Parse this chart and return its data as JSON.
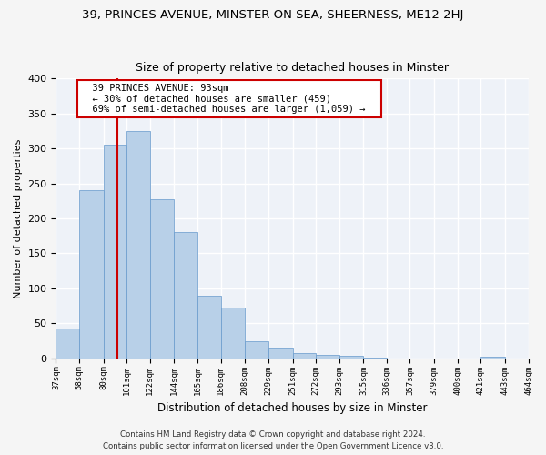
{
  "title1": "39, PRINCES AVENUE, MINSTER ON SEA, SHEERNESS, ME12 2HJ",
  "title2": "Size of property relative to detached houses in Minster",
  "xlabel": "Distribution of detached houses by size in Minster",
  "ylabel": "Number of detached properties",
  "bins": [
    "37sqm",
    "58sqm",
    "80sqm",
    "101sqm",
    "122sqm",
    "144sqm",
    "165sqm",
    "186sqm",
    "208sqm",
    "229sqm",
    "251sqm",
    "272sqm",
    "293sqm",
    "315sqm",
    "336sqm",
    "357sqm",
    "379sqm",
    "400sqm",
    "421sqm",
    "443sqm",
    "464sqm"
  ],
  "values": [
    42,
    240,
    305,
    325,
    228,
    180,
    90,
    72,
    25,
    15,
    8,
    5,
    3,
    1,
    0,
    0,
    0,
    0,
    2,
    0
  ],
  "bar_color": "#b8d0e8",
  "bar_edge_color": "#6699cc",
  "vline_x": 93,
  "vline_color": "#cc0000",
  "annotation_text": "  39 PRINCES AVENUE: 93sqm  \n  ← 30% of detached houses are smaller (459)  \n  69% of semi-detached houses are larger (1,059) →  ",
  "annotation_box_color": "#ffffff",
  "annotation_box_edge": "#cc0000",
  "footer1": "Contains HM Land Registry data © Crown copyright and database right 2024.",
  "footer2": "Contains public sector information licensed under the Open Government Licence v3.0.",
  "ylim": [
    0,
    400
  ],
  "bg_color": "#eef2f8",
  "grid_color": "#ffffff",
  "title1_fontsize": 9.5,
  "title2_fontsize": 9,
  "bin_edges": [
    37,
    58,
    80,
    101,
    122,
    144,
    165,
    186,
    208,
    229,
    251,
    272,
    293,
    315,
    336,
    357,
    379,
    400,
    421,
    443,
    464
  ]
}
